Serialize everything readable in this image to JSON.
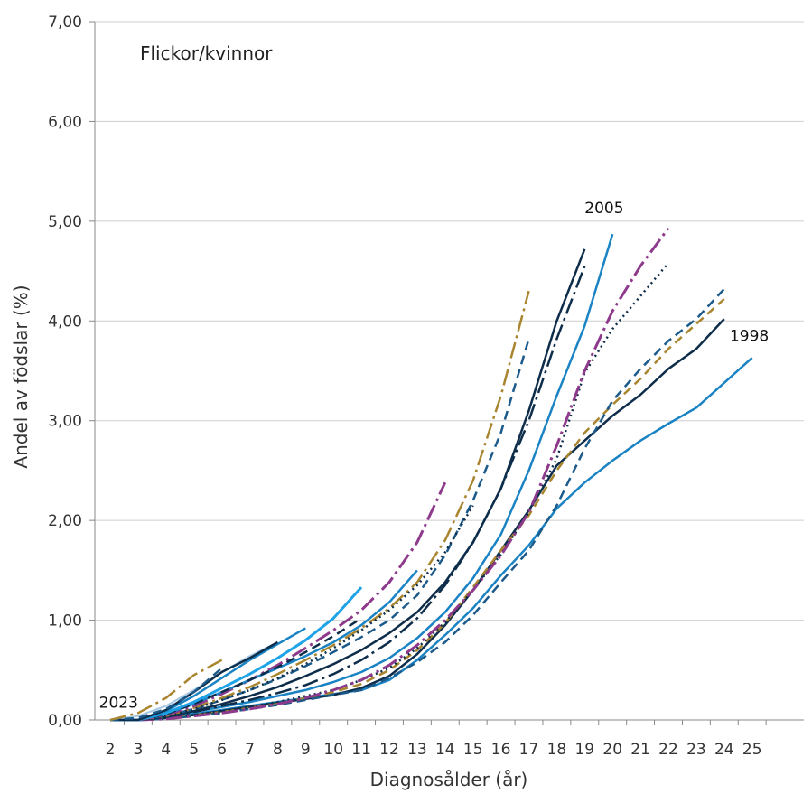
{
  "chart_data": {
    "type": "line",
    "title": "",
    "panel_label": "Flickor/kvinnor",
    "xlabel": "Diagnosålder (år)",
    "ylabel": "Andel av födslar (%)",
    "x_ticks": [
      "2",
      "3",
      "4",
      "5",
      "6",
      "7",
      "8",
      "9",
      "10",
      "11",
      "12",
      "13",
      "14",
      "15",
      "16",
      "17",
      "18",
      "19",
      "20",
      "21",
      "22",
      "23",
      "24",
      "25"
    ],
    "y_ticks": [
      "0,00",
      "1,00",
      "2,00",
      "3,00",
      "4,00",
      "5,00",
      "6,00",
      "7,00"
    ],
    "ylim": [
      0,
      7
    ],
    "xlim": [
      2,
      25
    ],
    "grid": "horizontal",
    "annotations": [
      {
        "text": "2005",
        "x": 19.7,
        "y": 5.08
      },
      {
        "text": "1998",
        "x": 24.9,
        "y": 3.8
      },
      {
        "text": "2023",
        "x": 2.3,
        "y": 0.12
      }
    ],
    "series": [
      {
        "color": "#1a83c4",
        "dash": "solid",
        "width": 2.5,
        "x": [
          2,
          3,
          4,
          5,
          6,
          7,
          8,
          9,
          10,
          11,
          12,
          13,
          14,
          15,
          16,
          17,
          18,
          19,
          20,
          21,
          22,
          23,
          24,
          25
        ],
        "y": [
          0,
          0,
          0.02,
          0.06,
          0.1,
          0.14,
          0.18,
          0.22,
          0.26,
          0.3,
          0.4,
          0.6,
          0.85,
          1.12,
          1.45,
          1.75,
          2.12,
          2.38,
          2.6,
          2.8,
          2.97,
          3.13,
          3.38,
          3.63
        ]
      },
      {
        "color": "#0e2d4a",
        "dash": "solid",
        "width": 2.5,
        "x": [
          2,
          3,
          4,
          5,
          6,
          7,
          8,
          9,
          10,
          11,
          12,
          13,
          14,
          15,
          16,
          17,
          18,
          19,
          20,
          21,
          22,
          23,
          24
        ],
        "y": [
          0,
          0,
          0.02,
          0.05,
          0.09,
          0.13,
          0.17,
          0.21,
          0.25,
          0.32,
          0.44,
          0.66,
          0.95,
          1.3,
          1.7,
          2.1,
          2.55,
          2.8,
          3.05,
          3.26,
          3.52,
          3.72,
          4.02
        ]
      },
      {
        "color": "#a8852e",
        "dash": "10,6",
        "width": 2.5,
        "x": [
          2,
          3,
          4,
          5,
          6,
          7,
          8,
          9,
          10,
          11,
          12,
          13,
          14,
          15,
          16,
          17,
          18,
          19,
          20,
          21,
          22,
          23,
          24
        ],
        "y": [
          0,
          0,
          0.02,
          0.05,
          0.08,
          0.12,
          0.16,
          0.22,
          0.28,
          0.36,
          0.5,
          0.7,
          0.97,
          1.33,
          1.7,
          2.05,
          2.5,
          2.88,
          3.16,
          3.42,
          3.72,
          3.97,
          4.22
        ]
      },
      {
        "color": "#1b5a8a",
        "dash": "10,6",
        "width": 2.5,
        "x": [
          2,
          3,
          4,
          5,
          6,
          7,
          8,
          9,
          10,
          11,
          12,
          13,
          14,
          15,
          16,
          17,
          18,
          19,
          20,
          21,
          22,
          23,
          24
        ],
        "y": [
          0,
          0,
          0.01,
          0.04,
          0.07,
          0.11,
          0.15,
          0.2,
          0.25,
          0.3,
          0.42,
          0.58,
          0.78,
          1.05,
          1.38,
          1.7,
          2.15,
          2.72,
          3.2,
          3.52,
          3.8,
          4.02,
          4.32
        ]
      },
      {
        "color": "#0e2d4a",
        "dash": "2,4",
        "width": 2.5,
        "x": [
          2,
          3,
          4,
          5,
          6,
          7,
          8,
          9,
          10,
          11,
          12,
          13,
          14,
          15,
          16,
          17,
          18,
          19,
          20,
          21,
          22
        ],
        "y": [
          0,
          0,
          0.02,
          0.05,
          0.09,
          0.13,
          0.18,
          0.24,
          0.3,
          0.4,
          0.52,
          0.72,
          0.98,
          1.3,
          1.66,
          2.08,
          2.62,
          3.48,
          3.92,
          4.25,
          4.58
        ]
      },
      {
        "color": "#8e3a8c",
        "dash": "18,5,3,5",
        "width": 3,
        "x": [
          2,
          3,
          4,
          5,
          6,
          7,
          8,
          9,
          10,
          11,
          12,
          13,
          14,
          15,
          16,
          17,
          18,
          19,
          20,
          21,
          22
        ],
        "y": [
          0,
          0,
          0.01,
          0.04,
          0.07,
          0.11,
          0.16,
          0.22,
          0.3,
          0.4,
          0.55,
          0.75,
          1.0,
          1.3,
          1.65,
          2.08,
          2.75,
          3.5,
          4.1,
          4.55,
          4.93
        ]
      },
      {
        "color": "#1a83c4",
        "dash": "solid",
        "width": 2.5,
        "x": [
          2,
          3,
          4,
          5,
          6,
          7,
          8,
          9,
          10,
          11,
          12,
          13,
          14,
          15,
          16,
          17,
          18,
          19,
          20
        ],
        "y": [
          0,
          0,
          0.03,
          0.08,
          0.13,
          0.18,
          0.24,
          0.3,
          0.38,
          0.48,
          0.62,
          0.82,
          1.08,
          1.42,
          1.86,
          2.5,
          3.25,
          3.95,
          4.87
        ]
      },
      {
        "color": "#0e2d4a",
        "dash": "18,5,3,5",
        "width": 2.5,
        "x": [
          2,
          3,
          4,
          5,
          6,
          7,
          8,
          9,
          10,
          11,
          12,
          13,
          14,
          15,
          16,
          17,
          18,
          19
        ],
        "y": [
          0,
          0,
          0.03,
          0.08,
          0.14,
          0.2,
          0.27,
          0.35,
          0.46,
          0.6,
          0.78,
          1.02,
          1.35,
          1.78,
          2.32,
          3.0,
          3.82,
          4.55
        ]
      },
      {
        "color": "#0e2d4a",
        "dash": "solid",
        "width": 2.5,
        "x": [
          2,
          3,
          4,
          5,
          6,
          7,
          8,
          9,
          10,
          11,
          12,
          13,
          14,
          15,
          16,
          17,
          18,
          19
        ],
        "y": [
          0,
          0,
          0.03,
          0.09,
          0.16,
          0.24,
          0.33,
          0.44,
          0.56,
          0.7,
          0.87,
          1.08,
          1.38,
          1.78,
          2.32,
          3.1,
          4.0,
          4.72
        ]
      },
      {
        "color": "#1b5a8a",
        "dash": "10,6",
        "width": 2.5,
        "x": [
          2,
          3,
          4,
          5,
          6,
          7,
          8,
          9,
          10,
          11,
          12,
          13,
          14,
          15,
          16,
          17
        ],
        "y": [
          0,
          0,
          0.04,
          0.11,
          0.2,
          0.3,
          0.41,
          0.54,
          0.68,
          0.83,
          1.0,
          1.25,
          1.65,
          2.2,
          2.88,
          3.82
        ]
      },
      {
        "color": "#a8852e",
        "dash": "18,5,3,5",
        "width": 2.5,
        "x": [
          2,
          3,
          4,
          5,
          6,
          7,
          8,
          9,
          10,
          11,
          12,
          13,
          14,
          15,
          16,
          17
        ],
        "y": [
          0,
          0,
          0.04,
          0.12,
          0.22,
          0.33,
          0.46,
          0.6,
          0.75,
          0.92,
          1.12,
          1.38,
          1.8,
          2.4,
          3.25,
          4.3
        ]
      },
      {
        "color": "#0e2d4a",
        "dash": "2,4",
        "width": 2.5,
        "x": [
          2,
          3,
          4,
          5,
          6,
          7,
          8,
          9,
          10,
          11,
          12,
          13,
          14,
          15
        ],
        "y": [
          0,
          0,
          0.04,
          0.11,
          0.2,
          0.3,
          0.42,
          0.56,
          0.72,
          0.9,
          1.1,
          1.35,
          1.68,
          2.15
        ]
      },
      {
        "color": "#8e3a8c",
        "dash": "18,5,3,5",
        "width": 3,
        "x": [
          2,
          3,
          4,
          5,
          6,
          7,
          8,
          9,
          10,
          11,
          12,
          13,
          14
        ],
        "y": [
          0,
          0,
          0.05,
          0.14,
          0.26,
          0.4,
          0.55,
          0.72,
          0.9,
          1.1,
          1.38,
          1.78,
          2.38
        ]
      },
      {
        "color": "#1a83c4",
        "dash": "solid",
        "width": 2.5,
        "x": [
          2,
          3,
          4,
          5,
          6,
          7,
          8,
          9,
          10,
          11,
          12,
          13
        ],
        "y": [
          0,
          0,
          0.06,
          0.16,
          0.28,
          0.4,
          0.52,
          0.64,
          0.78,
          0.95,
          1.18,
          1.5
        ]
      },
      {
        "color": "#0e2d4a",
        "dash": "10,6",
        "width": 2.5,
        "x": [
          2,
          3,
          4,
          5,
          6,
          7,
          8,
          9,
          10,
          11
        ],
        "y": [
          0,
          0,
          0.06,
          0.16,
          0.28,
          0.4,
          0.53,
          0.68,
          0.84,
          1.02
        ]
      },
      {
        "color": "#1ea3e8",
        "dash": "solid",
        "width": 3,
        "x": [
          2,
          3,
          4,
          5,
          6,
          7,
          8,
          9,
          10,
          11
        ],
        "y": [
          0,
          0,
          0.07,
          0.18,
          0.32,
          0.46,
          0.62,
          0.8,
          1.02,
          1.33
        ]
      },
      {
        "color": "#1a83c4",
        "dash": "solid",
        "width": 2.5,
        "x": [
          2,
          3,
          4,
          5,
          6,
          7,
          8,
          9
        ],
        "y": [
          0,
          0,
          0.09,
          0.24,
          0.42,
          0.6,
          0.76,
          0.92
        ]
      },
      {
        "color": "#a8c8e4",
        "dash": "solid",
        "width": 2,
        "x": [
          2,
          3,
          4,
          5,
          6,
          7,
          8
        ],
        "y": [
          0,
          0.04,
          0.14,
          0.3,
          0.48,
          0.64,
          0.78
        ]
      },
      {
        "color": "#0e2d4a",
        "dash": "solid",
        "width": 2.5,
        "x": [
          2,
          3,
          4,
          5,
          6,
          7,
          8
        ],
        "y": [
          0,
          0,
          0.1,
          0.28,
          0.48,
          0.62,
          0.78
        ]
      },
      {
        "color": "#1b5a8a",
        "dash": "10,6",
        "width": 2.5,
        "x": [
          2,
          3,
          4,
          5,
          6
        ],
        "y": [
          0,
          0.02,
          0.11,
          0.28,
          0.52
        ]
      },
      {
        "color": "#a8852e",
        "dash": "18,5,3,5",
        "width": 2.5,
        "x": [
          2,
          3,
          4,
          5,
          6
        ],
        "y": [
          0,
          0.07,
          0.22,
          0.45,
          0.6
        ]
      }
    ]
  }
}
